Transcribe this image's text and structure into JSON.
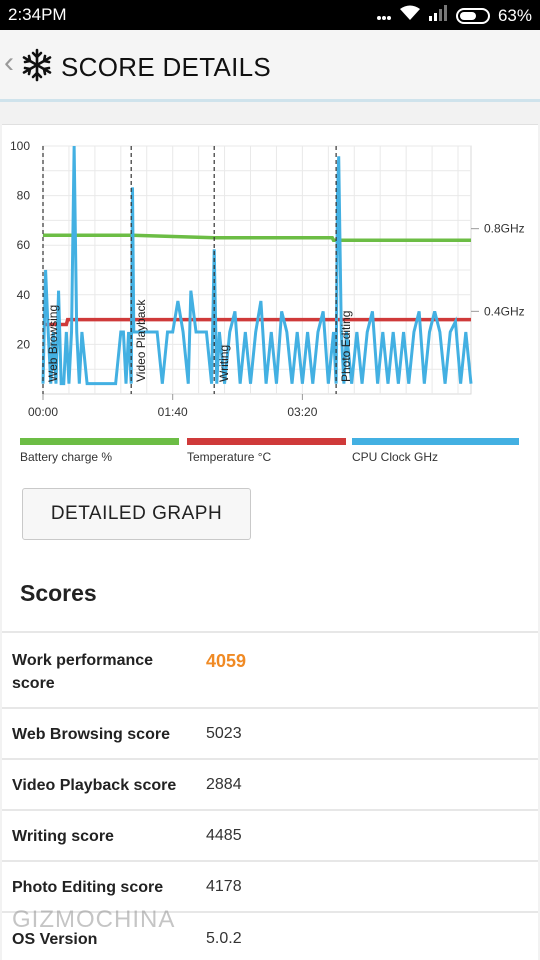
{
  "status_bar": {
    "time": "2:34PM",
    "battery_text": "63%",
    "battery_level": 0.63,
    "icons": [
      "more-dots-icon",
      "wifi-icon",
      "signal-icon",
      "battery-icon"
    ]
  },
  "app_bar": {
    "back_glyph": "‹",
    "title": "SCORE DETAILS",
    "logo_icon": "snowflake-icon"
  },
  "chart_data": {
    "type": "line",
    "x_tick_labels": [
      "00:00",
      "01:40",
      "03:20"
    ],
    "left_axis_ticks": [
      20,
      40,
      60,
      80,
      100
    ],
    "left_ylim": [
      0,
      100
    ],
    "right_axis_ticks": [
      "0.4GHz",
      "0.8GHz"
    ],
    "right_ylim_ghz": [
      0,
      1.2
    ],
    "xlim_minutes": [
      0,
      330
    ],
    "grid": true,
    "phases": [
      {
        "label": "Web Browsing",
        "start_min": 0
      },
      {
        "label": "Video Playback",
        "start_min": 68
      },
      {
        "label": "Writing",
        "start_min": 132
      },
      {
        "label": "Photo Editing",
        "start_min": 226
      }
    ],
    "series": [
      {
        "name": "Battery charge %",
        "color": "#6cbd45",
        "x": [
          0,
          68,
          69,
          132,
          133,
          223,
          224,
          226,
          227,
          330
        ],
        "y": [
          64,
          64,
          64,
          63,
          63,
          63,
          62,
          62,
          62,
          62
        ]
      },
      {
        "name": "Temperature °C",
        "color": "#cf3a3a",
        "x": [
          0,
          18,
          19,
          68,
          69,
          132,
          133,
          226,
          227,
          330
        ],
        "y": [
          28,
          28,
          30,
          30,
          30,
          30,
          30,
          30,
          30,
          30
        ]
      },
      {
        "name": "CPU Clock GHz",
        "color": "#43b0e2",
        "x": [
          0,
          2,
          4,
          6,
          8,
          10,
          12,
          14,
          16,
          18,
          20,
          22,
          24,
          26,
          28,
          30,
          34,
          40,
          44,
          48,
          52,
          56,
          60,
          62,
          64,
          66,
          68,
          69,
          70,
          72,
          76,
          80,
          84,
          88,
          92,
          96,
          100,
          104,
          108,
          112,
          114,
          118,
          122,
          126,
          130,
          132,
          134,
          136,
          140,
          144,
          148,
          152,
          156,
          160,
          164,
          168,
          172,
          176,
          180,
          184,
          188,
          192,
          196,
          200,
          204,
          208,
          212,
          216,
          220,
          224,
          226,
          227,
          228,
          230,
          232,
          234,
          238,
          242,
          246,
          250,
          254,
          258,
          262,
          266,
          270,
          274,
          278,
          282,
          286,
          290,
          294,
          298,
          302,
          306,
          310,
          314,
          318,
          322,
          326,
          330
        ],
        "y_ghz": [
          0.05,
          0.6,
          0.3,
          0.05,
          0.3,
          0.05,
          0.5,
          0.05,
          0.05,
          0.3,
          0.05,
          0.3,
          1.2,
          0.3,
          0.05,
          0.3,
          0.05,
          0.05,
          0.05,
          0.05,
          0.05,
          0.05,
          0.3,
          0.3,
          0.05,
          0.3,
          0.05,
          1.0,
          0.3,
          0.3,
          0.3,
          0.3,
          0.3,
          0.3,
          0.05,
          0.3,
          0.3,
          0.45,
          0.3,
          0.05,
          0.5,
          0.3,
          0.3,
          0.3,
          0.05,
          0.7,
          0.05,
          0.3,
          0.05,
          0.3,
          0.4,
          0.05,
          0.3,
          0.05,
          0.3,
          0.45,
          0.05,
          0.3,
          0.05,
          0.4,
          0.3,
          0.05,
          0.3,
          0.05,
          0.3,
          0.05,
          0.3,
          0.4,
          0.05,
          0.3,
          0.05,
          0.95,
          1.15,
          0.3,
          0.05,
          0.3,
          0.05,
          0.3,
          0.05,
          0.3,
          0.4,
          0.05,
          0.3,
          0.05,
          0.3,
          0.05,
          0.3,
          0.05,
          0.3,
          0.4,
          0.05,
          0.3,
          0.4,
          0.3,
          0.05,
          0.3,
          0.35,
          0.05,
          0.3,
          0.05
        ]
      }
    ]
  },
  "legend": [
    {
      "label": "Battery charge %",
      "color": "#6cbd45"
    },
    {
      "label": "Temperature °C",
      "color": "#cf3a3a"
    },
    {
      "label": "CPU Clock GHz",
      "color": "#43b0e2"
    }
  ],
  "detailed_graph_button": "DETAILED GRAPH",
  "scores_heading": "Scores",
  "scores": [
    {
      "label_lines": [
        "Work performance",
        "score"
      ],
      "value": "4059",
      "highlight": true
    },
    {
      "label_lines": [
        "Web Browsing score"
      ],
      "value": "5023",
      "highlight": false
    },
    {
      "label_lines": [
        "Video Playback score"
      ],
      "value": "2884",
      "highlight": false
    },
    {
      "label_lines": [
        "Writing score"
      ],
      "value": "4485",
      "highlight": false
    },
    {
      "label_lines": [
        "Photo Editing score"
      ],
      "value": "4178",
      "highlight": false
    },
    {
      "label_lines": [
        "OS Version"
      ],
      "value": "5.0.2",
      "highlight": false
    }
  ],
  "watermark": "GIZMOCHINA"
}
